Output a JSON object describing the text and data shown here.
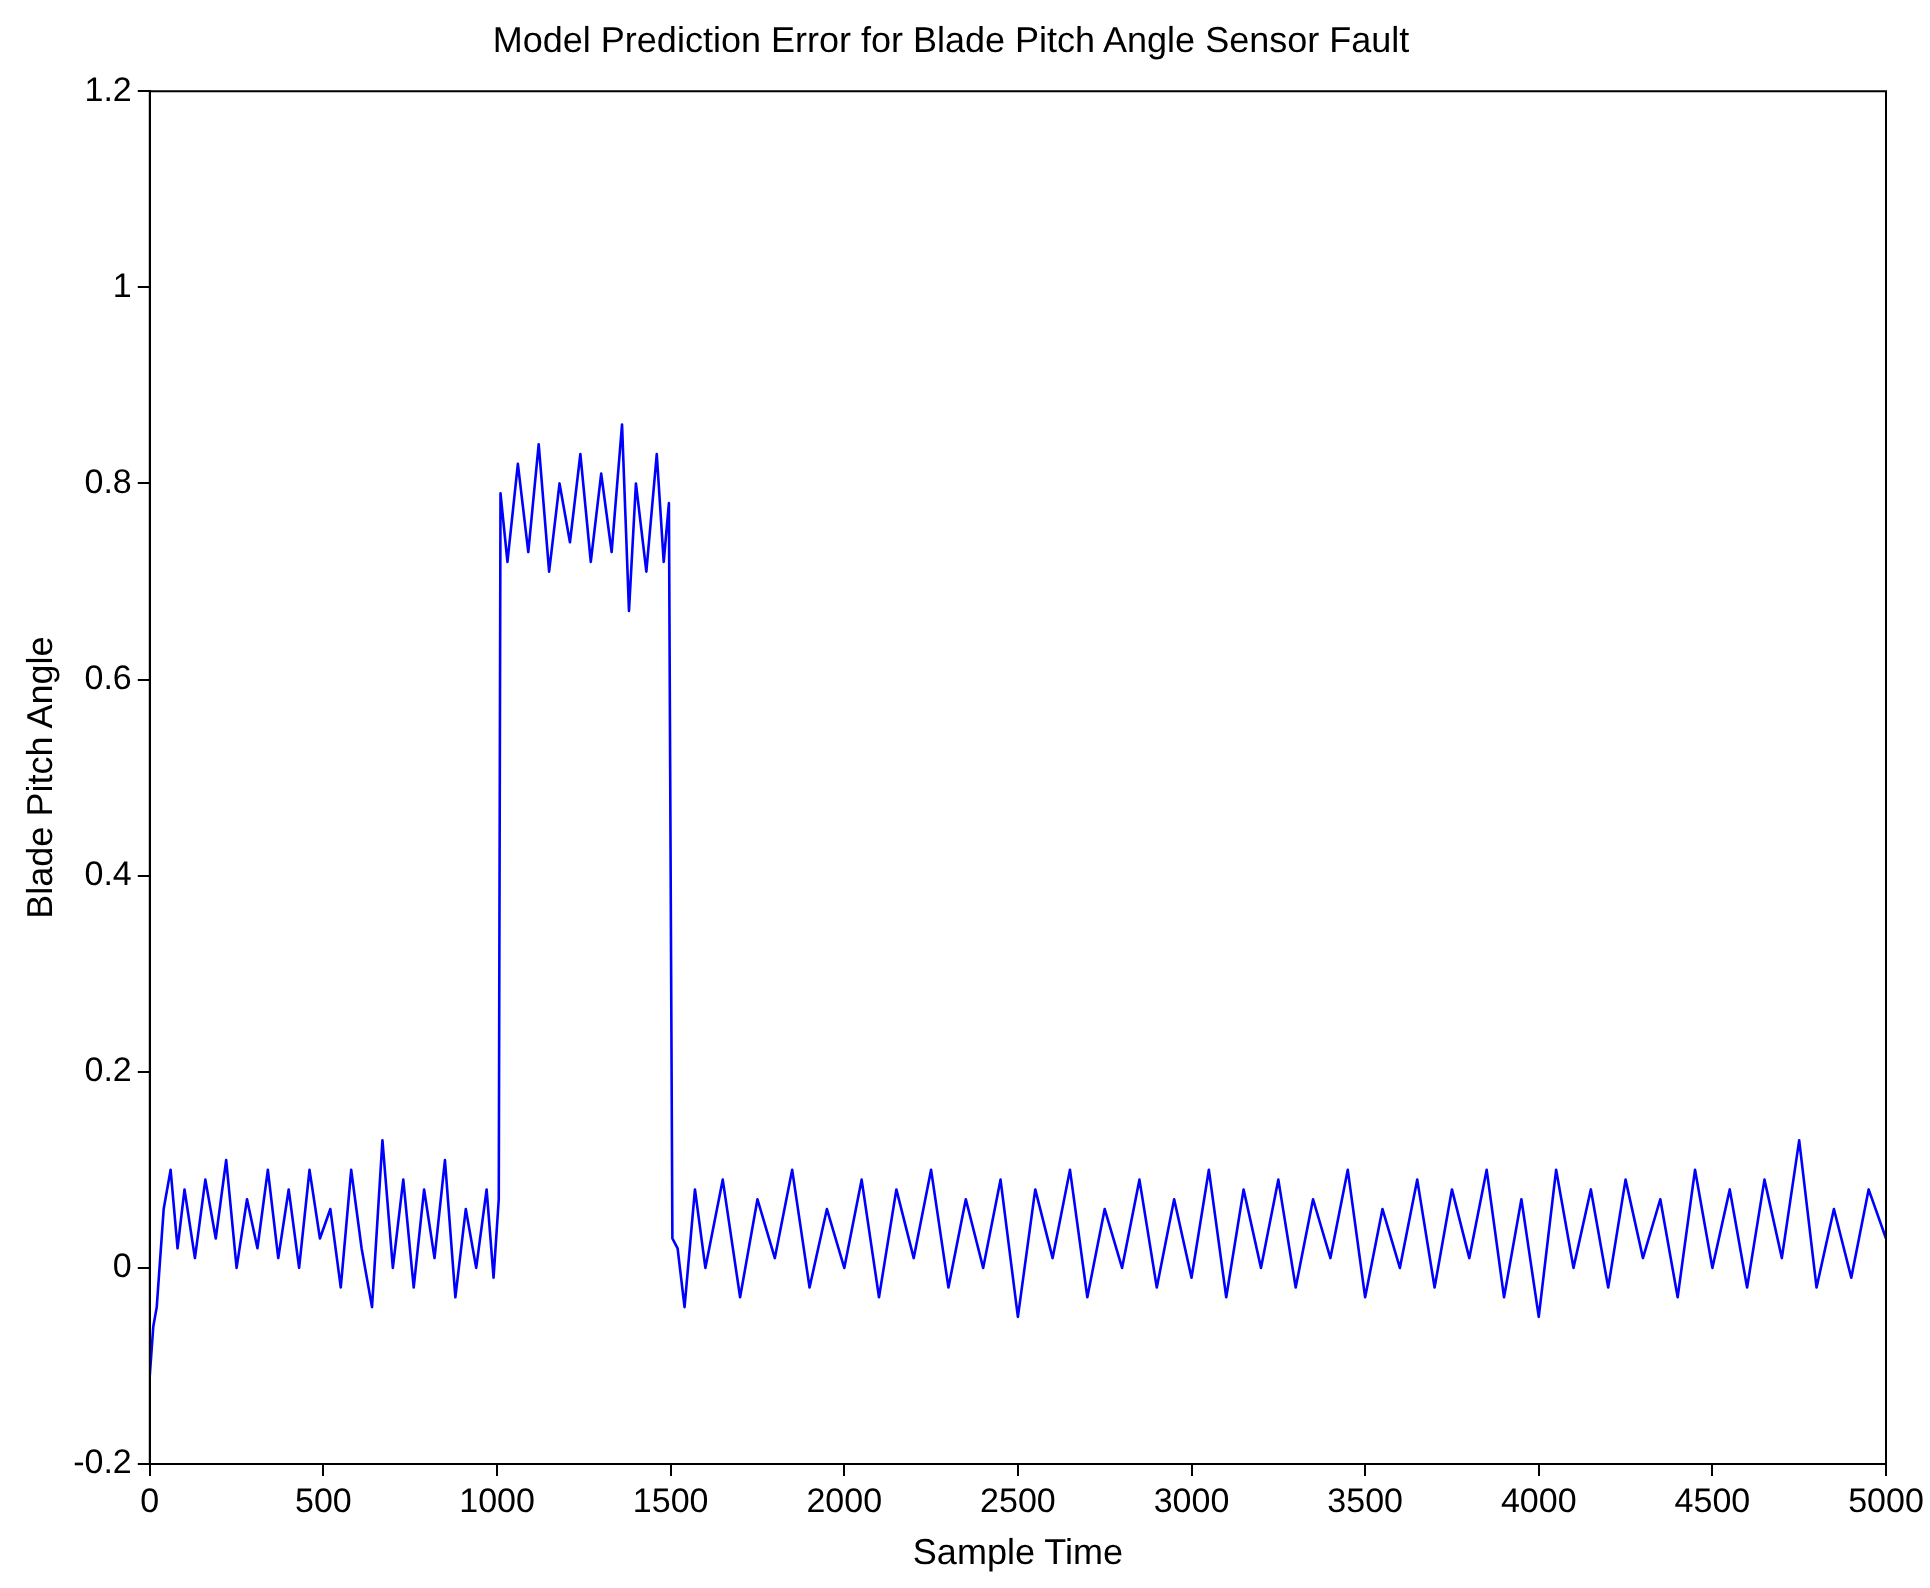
{
  "chart_data": {
    "type": "line",
    "title": "Model Prediction Error for Blade Pitch Angle Sensor Fault",
    "xlabel": "Sample Time",
    "ylabel": "Blade Pitch Angle",
    "x": [
      0,
      10,
      20,
      40,
      60,
      80,
      100,
      130,
      160,
      190,
      220,
      250,
      280,
      310,
      340,
      370,
      400,
      430,
      460,
      490,
      520,
      550,
      580,
      610,
      640,
      670,
      700,
      730,
      760,
      790,
      820,
      850,
      880,
      910,
      940,
      970,
      990,
      1005,
      1010,
      1030,
      1060,
      1090,
      1120,
      1150,
      1180,
      1210,
      1240,
      1270,
      1300,
      1330,
      1360,
      1380,
      1400,
      1430,
      1460,
      1480,
      1495,
      1505,
      1520,
      1540,
      1570,
      1600,
      1650,
      1700,
      1750,
      1800,
      1850,
      1900,
      1950,
      2000,
      2050,
      2100,
      2150,
      2200,
      2250,
      2300,
      2350,
      2400,
      2450,
      2500,
      2550,
      2600,
      2650,
      2700,
      2750,
      2800,
      2850,
      2900,
      2950,
      3000,
      3050,
      3100,
      3150,
      3200,
      3250,
      3300,
      3350,
      3400,
      3450,
      3500,
      3550,
      3600,
      3650,
      3700,
      3750,
      3800,
      3850,
      3900,
      3950,
      4000,
      4050,
      4100,
      4150,
      4200,
      4250,
      4300,
      4350,
      4400,
      4450,
      4500,
      4550,
      4600,
      4650,
      4700,
      4750,
      4800,
      4850,
      4900,
      4950,
      5000
    ],
    "series": [
      {
        "color": "#0000ff",
        "values": [
          -0.11,
          -0.06,
          -0.04,
          0.06,
          0.1,
          0.02,
          0.08,
          0.01,
          0.09,
          0.03,
          0.11,
          0.0,
          0.07,
          0.02,
          0.1,
          0.01,
          0.08,
          0.0,
          0.1,
          0.03,
          0.06,
          -0.02,
          0.1,
          0.02,
          -0.04,
          0.13,
          0.0,
          0.09,
          -0.02,
          0.08,
          0.01,
          0.11,
          -0.03,
          0.06,
          0.0,
          0.08,
          -0.01,
          0.07,
          0.79,
          0.72,
          0.82,
          0.73,
          0.84,
          0.71,
          0.8,
          0.74,
          0.83,
          0.72,
          0.81,
          0.73,
          0.86,
          0.67,
          0.8,
          0.71,
          0.83,
          0.72,
          0.78,
          0.03,
          0.02,
          -0.04,
          0.08,
          0.0,
          0.09,
          -0.03,
          0.07,
          0.01,
          0.1,
          -0.02,
          0.06,
          0.0,
          0.09,
          -0.03,
          0.08,
          0.01,
          0.1,
          -0.02,
          0.07,
          0.0,
          0.09,
          -0.05,
          0.08,
          0.01,
          0.1,
          -0.03,
          0.06,
          0.0,
          0.09,
          -0.02,
          0.07,
          -0.01,
          0.1,
          -0.03,
          0.08,
          0.0,
          0.09,
          -0.02,
          0.07,
          0.01,
          0.1,
          -0.03,
          0.06,
          0.0,
          0.09,
          -0.02,
          0.08,
          0.01,
          0.1,
          -0.03,
          0.07,
          -0.05,
          0.1,
          0.0,
          0.08,
          -0.02,
          0.09,
          0.01,
          0.07,
          -0.03,
          0.1,
          0.0,
          0.08,
          -0.02,
          0.09,
          0.01,
          0.13,
          -0.02,
          0.06,
          -0.01,
          0.08,
          0.03
        ]
      }
    ],
    "xlim": [
      0,
      5000
    ],
    "xticks": [
      0,
      500,
      1000,
      1500,
      2000,
      2500,
      3000,
      3500,
      4000,
      4500,
      5000
    ],
    "ylim": [
      -0.2,
      1.2
    ],
    "yticks": [
      -0.2,
      0,
      0.2,
      0.4,
      0.6,
      0.8,
      1,
      1.2
    ],
    "grid": false,
    "legend": false,
    "marker": "none",
    "line_style": "solid"
  }
}
